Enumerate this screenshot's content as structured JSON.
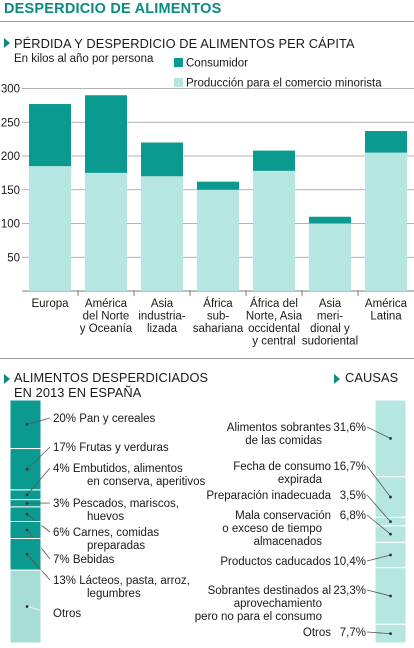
{
  "main_title": "DESPERDICIO DE ALIMENTOS",
  "section1": {
    "title": "PÉRDIDA Y DESPERDICIO DE ALIMENTOS PER CÁPITA",
    "subtitle": "En kilos al año por persona"
  },
  "section2": {
    "title_line1": "ALIMENTOS DESPERDICIADOS",
    "title_line2": "EN 2013 EN ESPAÑA"
  },
  "section3": {
    "title": "CAUSAS"
  },
  "colors": {
    "consumer": "#0b9a8f",
    "production": "#b5e6e2",
    "grid": "#9a9a9a",
    "accent": "#0b8a80"
  },
  "chart_data": [
    {
      "type": "bar",
      "stacked": true,
      "categories": [
        [
          "Europa"
        ],
        [
          "América",
          "del Norte",
          "y Oceanía"
        ],
        [
          "Asia",
          "industria-",
          "lizada"
        ],
        [
          "África",
          "sub-",
          "sahariana"
        ],
        [
          "África del",
          "Norte, Asia",
          "occidental",
          "y central"
        ],
        [
          "Asia",
          "meri-",
          "dional y",
          "sudoriental"
        ],
        [
          "América",
          "Latina"
        ]
      ],
      "series": [
        {
          "name": "Producción para el comercio minorista",
          "values": [
            185,
            175,
            170,
            150,
            178,
            100,
            205
          ]
        },
        {
          "name": "Consumidor",
          "values": [
            92,
            115,
            50,
            12,
            30,
            10,
            32
          ]
        }
      ],
      "yticks": [
        50,
        100,
        150,
        200,
        250,
        300
      ],
      "ylim": [
        0,
        300
      ]
    },
    {
      "type": "bar",
      "stacked": true,
      "orientation": "vertical-single",
      "segments": [
        {
          "label": "20% Pan y cereales",
          "pct": 20
        },
        {
          "label": "17% Frutas y verduras",
          "pct": 17
        },
        {
          "label": "4% Embutidos, alimentos en conserva, aperitivos",
          "lines": [
            "4% Embutidos, alimentos",
            "en conserva, aperitivos"
          ],
          "pct": 4
        },
        {
          "label": "3% Pescados, mariscos, huevos",
          "lines": [
            "3% Pescados, mariscos,",
            "huevos"
          ],
          "pct": 3
        },
        {
          "label": "6% Carnes, comidas preparadas",
          "lines": [
            "6% Carnes, comidas",
            "preparadas"
          ],
          "pct": 6
        },
        {
          "label": "7% Bebidas",
          "pct": 7
        },
        {
          "label": "13% Lácteos, pasta, arroz, legumbres",
          "lines": [
            "13% Lácteos, pasta, arroz,",
            "legumbres"
          ],
          "pct": 13
        },
        {
          "label": "Otros",
          "pct": 30
        }
      ]
    },
    {
      "type": "bar",
      "stacked": true,
      "orientation": "vertical-single",
      "segments": [
        {
          "label": "Alimentos sobrantes de las comidas",
          "lines": [
            "Alimentos sobrantes",
            "de las comidas"
          ],
          "value": "31,6%",
          "pct": 31.6
        },
        {
          "label": "Fecha de consumo expirada",
          "lines": [
            "Fecha de consumo",
            "expirada"
          ],
          "value": "16,7%",
          "pct": 16.7
        },
        {
          "label": "Preparación inadecuada",
          "lines": [
            "Preparación inadecuada"
          ],
          "value": "3,5%",
          "pct": 3.5
        },
        {
          "label": "Mala conservación o exceso de tiempo almacenados",
          "lines": [
            "Mala conservación",
            "o exceso de tiempo",
            "almacenados"
          ],
          "value": "6,8%",
          "pct": 6.8
        },
        {
          "label": "Productos caducados",
          "lines": [
            "Productos caducados"
          ],
          "value": "10,4%",
          "pct": 10.4
        },
        {
          "label": "Sobrantes destinados al aprovechamiento pero no para el consumo",
          "lines": [
            "Sobrantes destinados al",
            "aprovechamiento",
            "pero no para el consumo"
          ],
          "value": "23,3%",
          "pct": 23.3
        },
        {
          "label": "Otros",
          "lines": [
            "Otros"
          ],
          "value": "7,7%",
          "pct": 7.7
        }
      ]
    }
  ]
}
